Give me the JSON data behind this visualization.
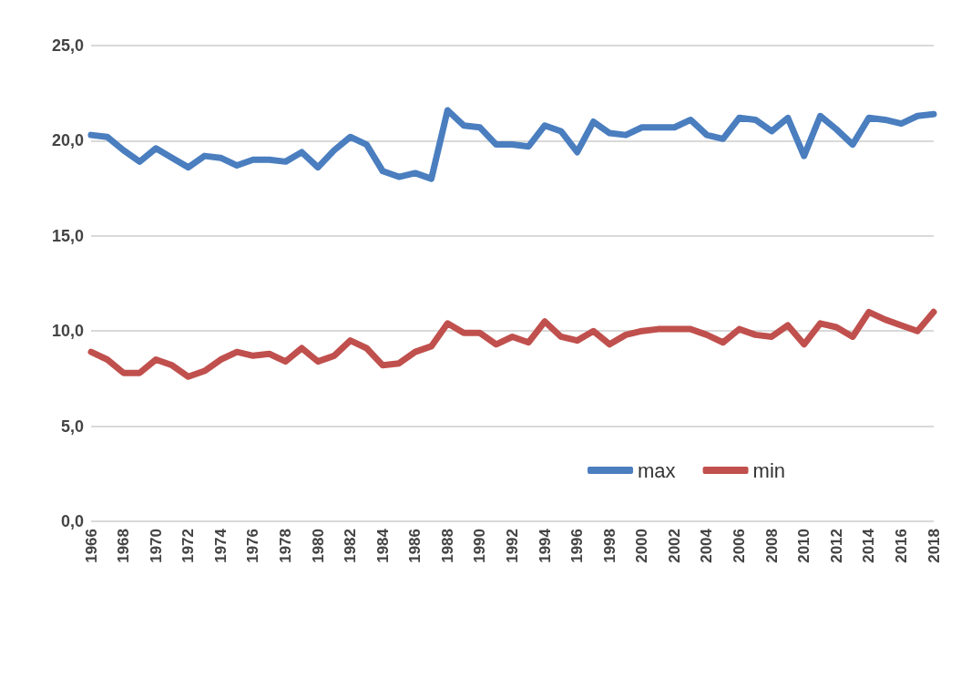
{
  "chart_data": {
    "type": "line",
    "categories": [
      "1966",
      null,
      "1968",
      null,
      "1970",
      null,
      "1972",
      null,
      "1974",
      null,
      "1976",
      null,
      "1978",
      null,
      "1980",
      null,
      "1982",
      null,
      "1984",
      null,
      "1986",
      null,
      "1988",
      null,
      "1990",
      null,
      "1992",
      null,
      "1994",
      null,
      "1996",
      null,
      "1998",
      null,
      "2000",
      null,
      "2002",
      null,
      "2004",
      null,
      "2006",
      null,
      "2008",
      null,
      "2010",
      null,
      "2012",
      null,
      "2014",
      null,
      "2016",
      null,
      "2018"
    ],
    "series": [
      {
        "name": "max",
        "color": "#4a7ebf",
        "values": [
          20.3,
          20.2,
          19.5,
          18.9,
          19.6,
          19.1,
          18.6,
          19.2,
          19.1,
          18.7,
          19.0,
          19.0,
          18.9,
          19.4,
          18.6,
          19.5,
          20.2,
          19.8,
          18.4,
          18.1,
          18.3,
          18.0,
          21.6,
          20.8,
          20.7,
          19.8,
          19.8,
          19.7,
          20.8,
          20.5,
          19.4,
          21.0,
          20.4,
          20.3,
          20.7,
          20.7,
          20.7,
          21.1,
          20.3,
          20.1,
          21.2,
          21.1,
          20.5,
          21.2,
          19.2,
          21.3,
          20.6,
          19.8,
          21.2,
          21.1,
          20.9,
          21.3,
          21.4
        ]
      },
      {
        "name": "min",
        "color": "#c0504d",
        "values": [
          8.9,
          8.5,
          7.8,
          7.8,
          8.5,
          8.2,
          7.6,
          7.9,
          8.5,
          8.9,
          8.7,
          8.8,
          8.4,
          9.1,
          8.4,
          8.7,
          9.5,
          9.1,
          8.2,
          8.3,
          8.9,
          9.2,
          10.4,
          9.9,
          9.9,
          9.3,
          9.7,
          9.4,
          10.5,
          9.7,
          9.5,
          10.0,
          9.3,
          9.8,
          10.0,
          10.1,
          10.1,
          10.1,
          9.8,
          9.4,
          10.1,
          9.8,
          9.7,
          10.3,
          9.3,
          10.4,
          10.2,
          9.7,
          11.0,
          10.6,
          10.3,
          10.0,
          11.0
        ]
      }
    ],
    "ylim": [
      0,
      25
    ],
    "yticks": [
      {
        "value": 0,
        "label": "0,0"
      },
      {
        "value": 5,
        "label": "5,0"
      },
      {
        "value": 10,
        "label": "10,0"
      },
      {
        "value": 15,
        "label": "15,0"
      },
      {
        "value": 20,
        "label": "20,0"
      },
      {
        "value": 25,
        "label": "25,0"
      }
    ],
    "grid": "y",
    "legend": "bottom right",
    "marker": "none",
    "line_style": "solid"
  }
}
